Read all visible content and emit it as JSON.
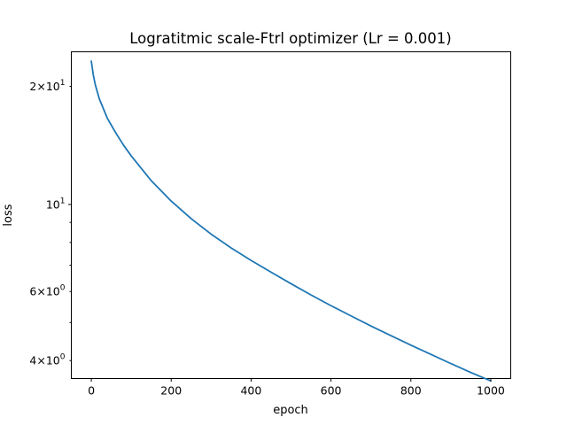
{
  "chart_data": {
    "type": "line",
    "title": "Logratitmic scale-Ftrl optimizer (Lr = 0.001)",
    "xlabel": "epoch",
    "ylabel": "loss",
    "xlim": [
      -50,
      1050
    ],
    "ylim": [
      3.6,
      24.5
    ],
    "yscale": "log",
    "grid": false,
    "x_ticks": [
      {
        "value": 0,
        "label": "0"
      },
      {
        "value": 200,
        "label": "200"
      },
      {
        "value": 400,
        "label": "400"
      },
      {
        "value": 600,
        "label": "600"
      },
      {
        "value": 800,
        "label": "800"
      },
      {
        "value": 1000,
        "label": "1000"
      }
    ],
    "y_major_ticks": [
      {
        "value": 10,
        "base": "10",
        "exp": "1"
      }
    ],
    "y_minor_ticks": [
      {
        "value": 4,
        "coef": "4",
        "base": "10",
        "exp": "0"
      },
      {
        "value": 5
      },
      {
        "value": 6,
        "coef": "6",
        "base": "10",
        "exp": "0"
      },
      {
        "value": 7
      },
      {
        "value": 8
      },
      {
        "value": 9
      },
      {
        "value": 20,
        "coef": "2",
        "base": "10",
        "exp": "1"
      }
    ],
    "series": [
      {
        "color": "#1f77b4",
        "x": [
          0,
          5,
          10,
          20,
          40,
          60,
          80,
          100,
          150,
          200,
          250,
          300,
          350,
          400,
          450,
          500,
          550,
          600,
          650,
          700,
          750,
          800,
          850,
          900,
          950,
          1000
        ],
        "y": [
          23.2,
          21.4,
          20.2,
          18.6,
          16.6,
          15.3,
          14.2,
          13.3,
          11.5,
          10.2,
          9.2,
          8.4,
          7.75,
          7.2,
          6.72,
          6.28,
          5.88,
          5.52,
          5.2,
          4.9,
          4.63,
          4.38,
          4.15,
          3.93,
          3.73,
          3.55
        ]
      }
    ]
  }
}
